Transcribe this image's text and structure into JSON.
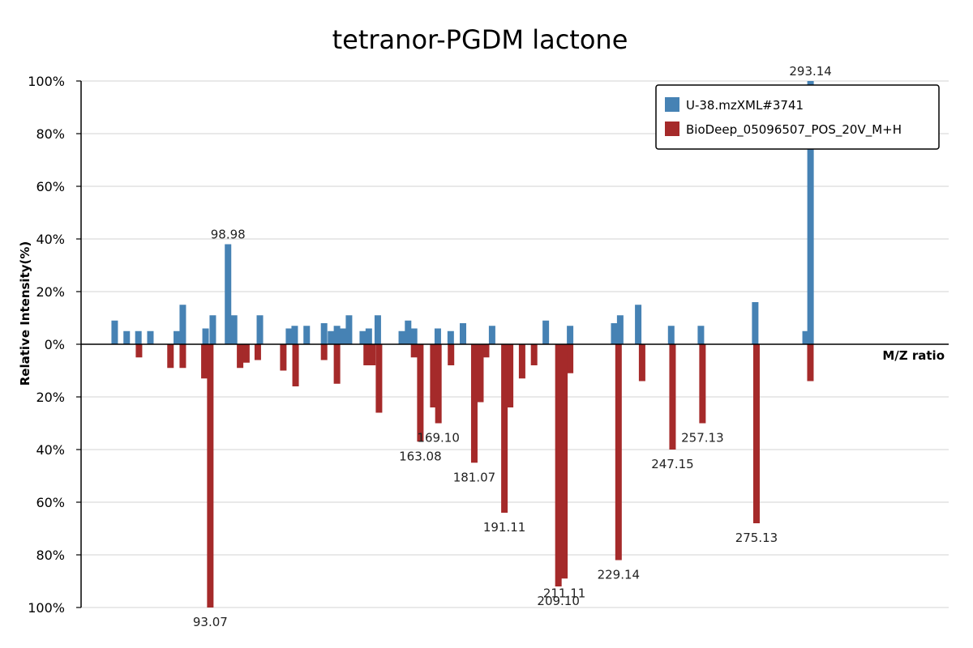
{
  "chart_data": {
    "type": "bar",
    "title": "tetranor-PGDM lactone",
    "xlabel": "M/Z ratio",
    "ylabel": "Relative Intensity(%)",
    "ylim": [
      -100,
      100
    ],
    "y_ticks": [
      {
        "value": 100,
        "label": "100%"
      },
      {
        "value": 80,
        "label": "80%"
      },
      {
        "value": 60,
        "label": "60%"
      },
      {
        "value": 40,
        "label": "40%"
      },
      {
        "value": 20,
        "label": "20%"
      },
      {
        "value": 0,
        "label": "0%"
      },
      {
        "value": -20,
        "label": "20%"
      },
      {
        "value": -40,
        "label": "40%"
      },
      {
        "value": -60,
        "label": "60%"
      },
      {
        "value": -80,
        "label": "80%"
      },
      {
        "value": -100,
        "label": "100%"
      }
    ],
    "grid": true,
    "legend_position": "top-right",
    "series": [
      {
        "name": "U-38.mzXML#3741",
        "color": "#4682B4",
        "direction": "up",
        "peaks": [
          {
            "mz": 61.2,
            "value": 9
          },
          {
            "mz": 65.2,
            "value": 5
          },
          {
            "mz": 69.1,
            "value": 5
          },
          {
            "mz": 73.1,
            "value": 5
          },
          {
            "mz": 81.9,
            "value": 5
          },
          {
            "mz": 83.9,
            "value": 15
          },
          {
            "mz": 91.5,
            "value": 6
          },
          {
            "mz": 93.9,
            "value": 11
          },
          {
            "mz": 98.98,
            "value": 38
          },
          {
            "mz": 101.0,
            "value": 11
          },
          {
            "mz": 109.6,
            "value": 11
          },
          {
            "mz": 119.3,
            "value": 6
          },
          {
            "mz": 121.2,
            "value": 7
          },
          {
            "mz": 125.2,
            "value": 7
          },
          {
            "mz": 131.0,
            "value": 8
          },
          {
            "mz": 133.3,
            "value": 5
          },
          {
            "mz": 135.3,
            "value": 7
          },
          {
            "mz": 137.2,
            "value": 6
          },
          {
            "mz": 139.3,
            "value": 11
          },
          {
            "mz": 143.9,
            "value": 5
          },
          {
            "mz": 145.9,
            "value": 6
          },
          {
            "mz": 148.9,
            "value": 11
          },
          {
            "mz": 156.9,
            "value": 5
          },
          {
            "mz": 159.0,
            "value": 9
          },
          {
            "mz": 161.0,
            "value": 6
          },
          {
            "mz": 168.9,
            "value": 6
          },
          {
            "mz": 173.2,
            "value": 5
          },
          {
            "mz": 177.3,
            "value": 8
          },
          {
            "mz": 187.0,
            "value": 7
          },
          {
            "mz": 204.9,
            "value": 9
          },
          {
            "mz": 213.0,
            "value": 7
          },
          {
            "mz": 227.7,
            "value": 8
          },
          {
            "mz": 229.7,
            "value": 11
          },
          {
            "mz": 235.7,
            "value": 15
          },
          {
            "mz": 246.7,
            "value": 7
          },
          {
            "mz": 256.6,
            "value": 7
          },
          {
            "mz": 274.7,
            "value": 16
          },
          {
            "mz": 291.5,
            "value": 5
          },
          {
            "mz": 293.14,
            "value": 100
          }
        ]
      },
      {
        "name": "BioDeep_05096507_POS_20V_M+H",
        "color": "#A52A2A",
        "direction": "down",
        "peaks": [
          {
            "mz": 69.3,
            "value": 5
          },
          {
            "mz": 79.8,
            "value": 9
          },
          {
            "mz": 83.9,
            "value": 9
          },
          {
            "mz": 91.1,
            "value": 13
          },
          {
            "mz": 93.07,
            "value": 100
          },
          {
            "mz": 103.0,
            "value": 9
          },
          {
            "mz": 105.1,
            "value": 7
          },
          {
            "mz": 108.9,
            "value": 6
          },
          {
            "mz": 117.4,
            "value": 10
          },
          {
            "mz": 121.5,
            "value": 16
          },
          {
            "mz": 131.0,
            "value": 6
          },
          {
            "mz": 135.3,
            "value": 15
          },
          {
            "mz": 145.2,
            "value": 8
          },
          {
            "mz": 147.1,
            "value": 8
          },
          {
            "mz": 149.3,
            "value": 26
          },
          {
            "mz": 161.0,
            "value": 5
          },
          {
            "mz": 163.08,
            "value": 37
          },
          {
            "mz": 167.4,
            "value": 24
          },
          {
            "mz": 169.1,
            "value": 30
          },
          {
            "mz": 173.3,
            "value": 8
          },
          {
            "mz": 181.07,
            "value": 45
          },
          {
            "mz": 183.1,
            "value": 22
          },
          {
            "mz": 185.0,
            "value": 5
          },
          {
            "mz": 191.11,
            "value": 64
          },
          {
            "mz": 193.0,
            "value": 24
          },
          {
            "mz": 197.0,
            "value": 13
          },
          {
            "mz": 201.0,
            "value": 8
          },
          {
            "mz": 209.1,
            "value": 92
          },
          {
            "mz": 211.11,
            "value": 89
          },
          {
            "mz": 213.0,
            "value": 11
          },
          {
            "mz": 229.14,
            "value": 82
          },
          {
            "mz": 237.0,
            "value": 14
          },
          {
            "mz": 247.15,
            "value": 40
          },
          {
            "mz": 257.13,
            "value": 30
          },
          {
            "mz": 275.13,
            "value": 68
          },
          {
            "mz": 293.1,
            "value": 14
          }
        ]
      }
    ],
    "peak_labels": [
      {
        "text": "293.14",
        "series": 0,
        "mz": 293.14
      },
      {
        "text": "98.98",
        "series": 0,
        "mz": 98.98
      },
      {
        "text": "93.07",
        "series": 1,
        "mz": 93.07
      },
      {
        "text": "163.08",
        "series": 1,
        "mz": 163.08
      },
      {
        "text": "169.10",
        "series": 1,
        "mz": 169.1
      },
      {
        "text": "181.07",
        "series": 1,
        "mz": 181.07
      },
      {
        "text": "191.11",
        "series": 1,
        "mz": 191.11
      },
      {
        "text": "211.11",
        "series": 1,
        "mz": 211.11
      },
      {
        "text": "209.10",
        "series": 1,
        "mz": 209.1
      },
      {
        "text": "229.14",
        "series": 1,
        "mz": 229.14
      },
      {
        "text": "247.15",
        "series": 1,
        "mz": 247.15
      },
      {
        "text": "257.13",
        "series": 1,
        "mz": 257.13
      },
      {
        "text": "275.13",
        "series": 1,
        "mz": 275.13
      }
    ]
  }
}
